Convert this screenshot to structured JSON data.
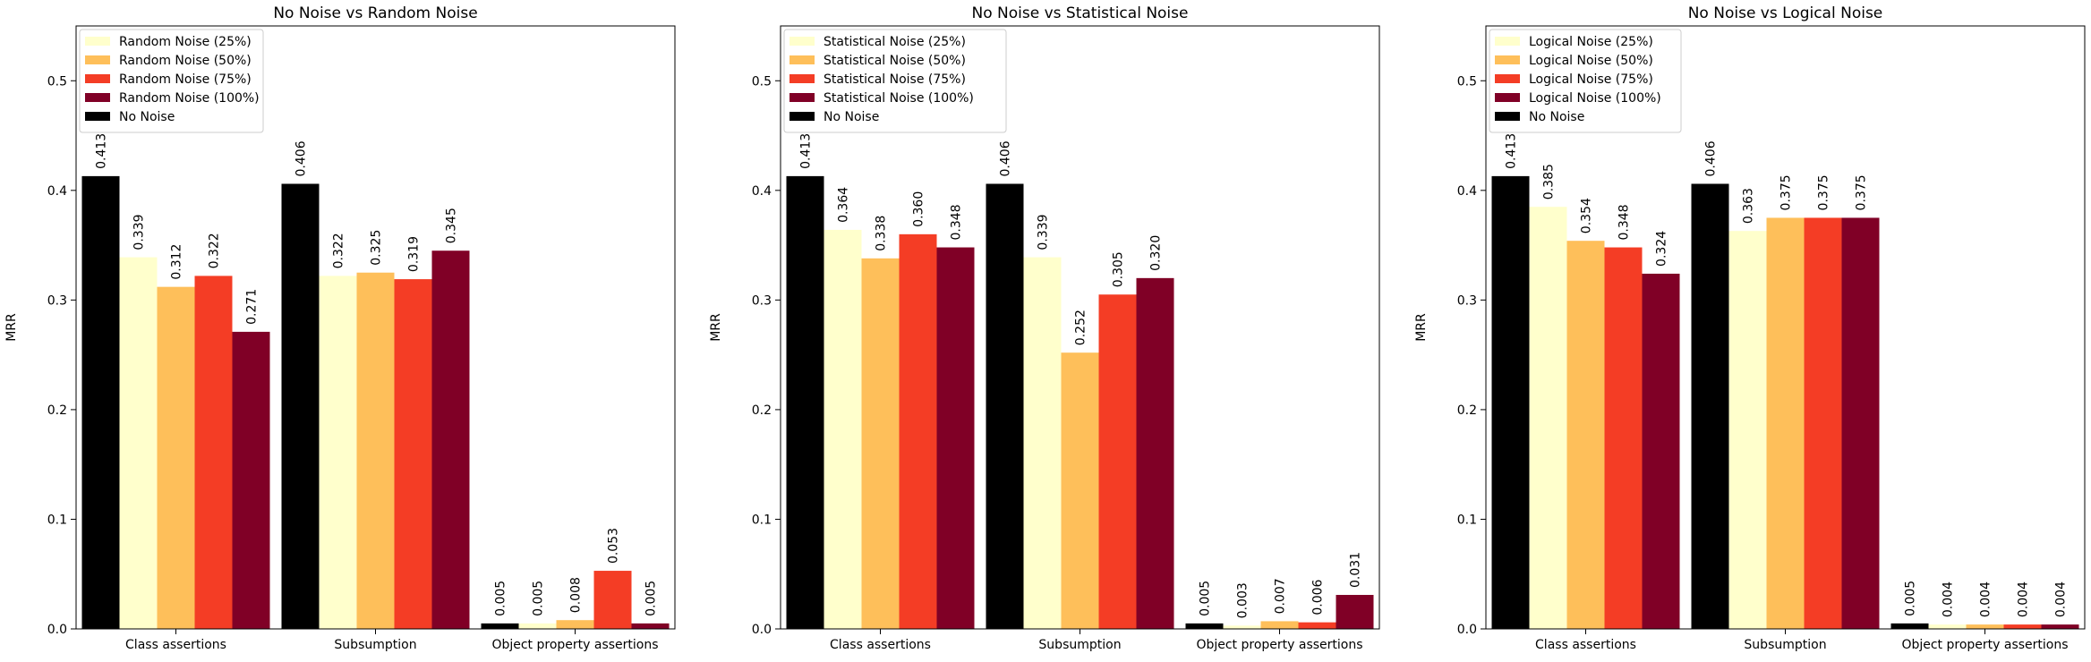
{
  "colors": {
    "no_noise": "#000000",
    "noise_25": "#ffffcc",
    "noise_50": "#febf5a",
    "noise_75": "#f43d25",
    "noise_100": "#800026"
  },
  "chart_data": [
    {
      "type": "bar",
      "title": "No Noise vs Random Noise",
      "ylabel": "MRR",
      "xlabel": "",
      "ylim": [
        0,
        0.55
      ],
      "yticks": [
        "0.0",
        "0.1",
        "0.2",
        "0.3",
        "0.4",
        "0.5"
      ],
      "legend_position": "top-left",
      "categories": [
        "Class assertions",
        "Subsumption",
        "Object property assertions"
      ],
      "series": [
        {
          "name": "No Noise",
          "values": [
            0.413,
            0.406,
            0.005
          ],
          "labels": [
            "0.413",
            "0.406",
            "0.005"
          ]
        },
        {
          "name": "Random Noise (25%)",
          "values": [
            0.339,
            0.322,
            0.005
          ],
          "labels": [
            "0.339",
            "0.322",
            "0.005"
          ]
        },
        {
          "name": "Random Noise (50%)",
          "values": [
            0.312,
            0.325,
            0.008
          ],
          "labels": [
            "0.312",
            "0.325",
            "0.008"
          ]
        },
        {
          "name": "Random Noise (75%)",
          "values": [
            0.322,
            0.319,
            0.053
          ],
          "labels": [
            "0.322",
            "0.319",
            "0.053"
          ]
        },
        {
          "name": "Random Noise (100%)",
          "values": [
            0.271,
            0.345,
            0.005
          ],
          "labels": [
            "0.271",
            "0.345",
            "0.005"
          ]
        }
      ],
      "legend_order": [
        "Random Noise (25%)",
        "Random Noise (50%)",
        "Random Noise (75%)",
        "Random Noise (100%)",
        "No Noise"
      ]
    },
    {
      "type": "bar",
      "title": "No Noise vs Statistical Noise",
      "ylabel": "MRR",
      "xlabel": "",
      "ylim": [
        0,
        0.55
      ],
      "yticks": [
        "0.0",
        "0.1",
        "0.2",
        "0.3",
        "0.4",
        "0.5"
      ],
      "legend_position": "top-left",
      "categories": [
        "Class assertions",
        "Subsumption",
        "Object property assertions"
      ],
      "series": [
        {
          "name": "No Noise",
          "values": [
            0.413,
            0.406,
            0.005
          ],
          "labels": [
            "0.413",
            "0.406",
            "0.005"
          ]
        },
        {
          "name": "Statistical Noise (25%)",
          "values": [
            0.364,
            0.339,
            0.003
          ],
          "labels": [
            "0.364",
            "0.339",
            "0.003"
          ]
        },
        {
          "name": "Statistical Noise (50%)",
          "values": [
            0.338,
            0.252,
            0.007
          ],
          "labels": [
            "0.338",
            "0.252",
            "0.007"
          ]
        },
        {
          "name": "Statistical Noise (75%)",
          "values": [
            0.36,
            0.305,
            0.006
          ],
          "labels": [
            "0.360",
            "0.305",
            "0.006"
          ]
        },
        {
          "name": "Statistical Noise (100%)",
          "values": [
            0.348,
            0.32,
            0.031
          ],
          "labels": [
            "0.348",
            "0.320",
            "0.031"
          ]
        }
      ],
      "legend_order": [
        "Statistical Noise (25%)",
        "Statistical Noise (50%)",
        "Statistical Noise (75%)",
        "Statistical Noise (100%)",
        "No Noise"
      ]
    },
    {
      "type": "bar",
      "title": "No Noise vs Logical Noise",
      "ylabel": "MRR",
      "xlabel": "",
      "ylim": [
        0,
        0.55
      ],
      "yticks": [
        "0.0",
        "0.1",
        "0.2",
        "0.3",
        "0.4",
        "0.5"
      ],
      "legend_position": "top-left",
      "categories": [
        "Class assertions",
        "Subsumption",
        "Object property assertions"
      ],
      "series": [
        {
          "name": "No Noise",
          "values": [
            0.413,
            0.406,
            0.005
          ],
          "labels": [
            "0.413",
            "0.406",
            "0.005"
          ]
        },
        {
          "name": "Logical Noise (25%)",
          "values": [
            0.385,
            0.363,
            0.004
          ],
          "labels": [
            "0.385",
            "0.363",
            "0.004"
          ]
        },
        {
          "name": "Logical Noise (50%)",
          "values": [
            0.354,
            0.375,
            0.004
          ],
          "labels": [
            "0.354",
            "0.375",
            "0.004"
          ]
        },
        {
          "name": "Logical Noise (75%)",
          "values": [
            0.348,
            0.375,
            0.004
          ],
          "labels": [
            "0.348",
            "0.375",
            "0.004"
          ]
        },
        {
          "name": "Logical Noise (100%)",
          "values": [
            0.324,
            0.375,
            0.004
          ],
          "labels": [
            "0.324",
            "0.375",
            "0.004"
          ]
        }
      ],
      "legend_order": [
        "Logical Noise (25%)",
        "Logical Noise (50%)",
        "Logical Noise (75%)",
        "Logical Noise (100%)",
        "No Noise"
      ]
    }
  ]
}
